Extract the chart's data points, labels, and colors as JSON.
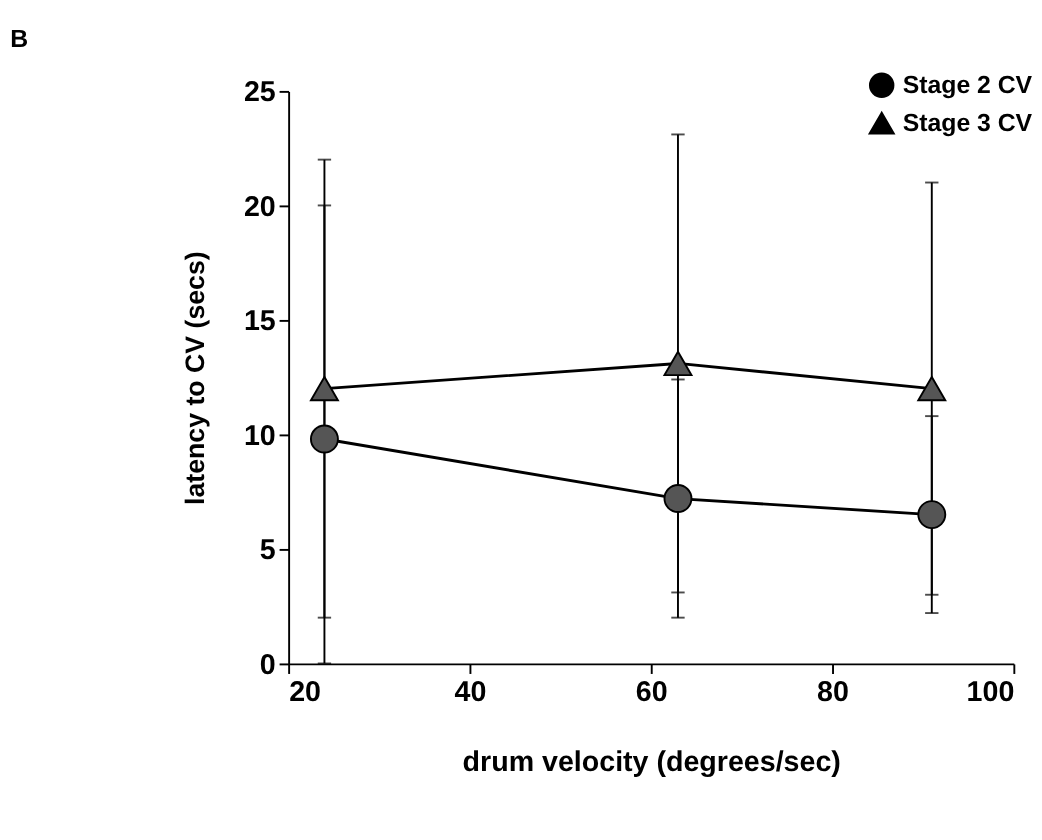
{
  "chart_data": {
    "type": "line",
    "title": "B",
    "xlabel": "drum velocity  (degrees/sec)",
    "ylabel": "latency to CV (secs)",
    "x": [
      24,
      63,
      91
    ],
    "series": [
      {
        "name": "Stage 2 CV",
        "color": "#000000",
        "marker": "circle",
        "values": [
          9.8,
          7.2,
          6.5
        ],
        "errors": [
          [
            0,
            20
          ],
          [
            2,
            12.4
          ],
          [
            2.2,
            10.8
          ]
        ]
      },
      {
        "name": "Stage 3 CV",
        "color": "#000000",
        "marker": "triangle",
        "values": [
          12,
          13.1,
          12
        ],
        "errors": [
          [
            2,
            22
          ],
          [
            3.1,
            23.1
          ],
          [
            3,
            21
          ]
        ]
      }
    ],
    "xlim": [
      20,
      100
    ],
    "xticks": [
      20,
      40,
      60,
      80,
      100
    ],
    "ylim": [
      0,
      25
    ],
    "yticks": [
      0,
      5,
      10,
      15,
      20,
      25
    ],
    "grid": false,
    "legend": "top right",
    "line_style": "solid"
  }
}
